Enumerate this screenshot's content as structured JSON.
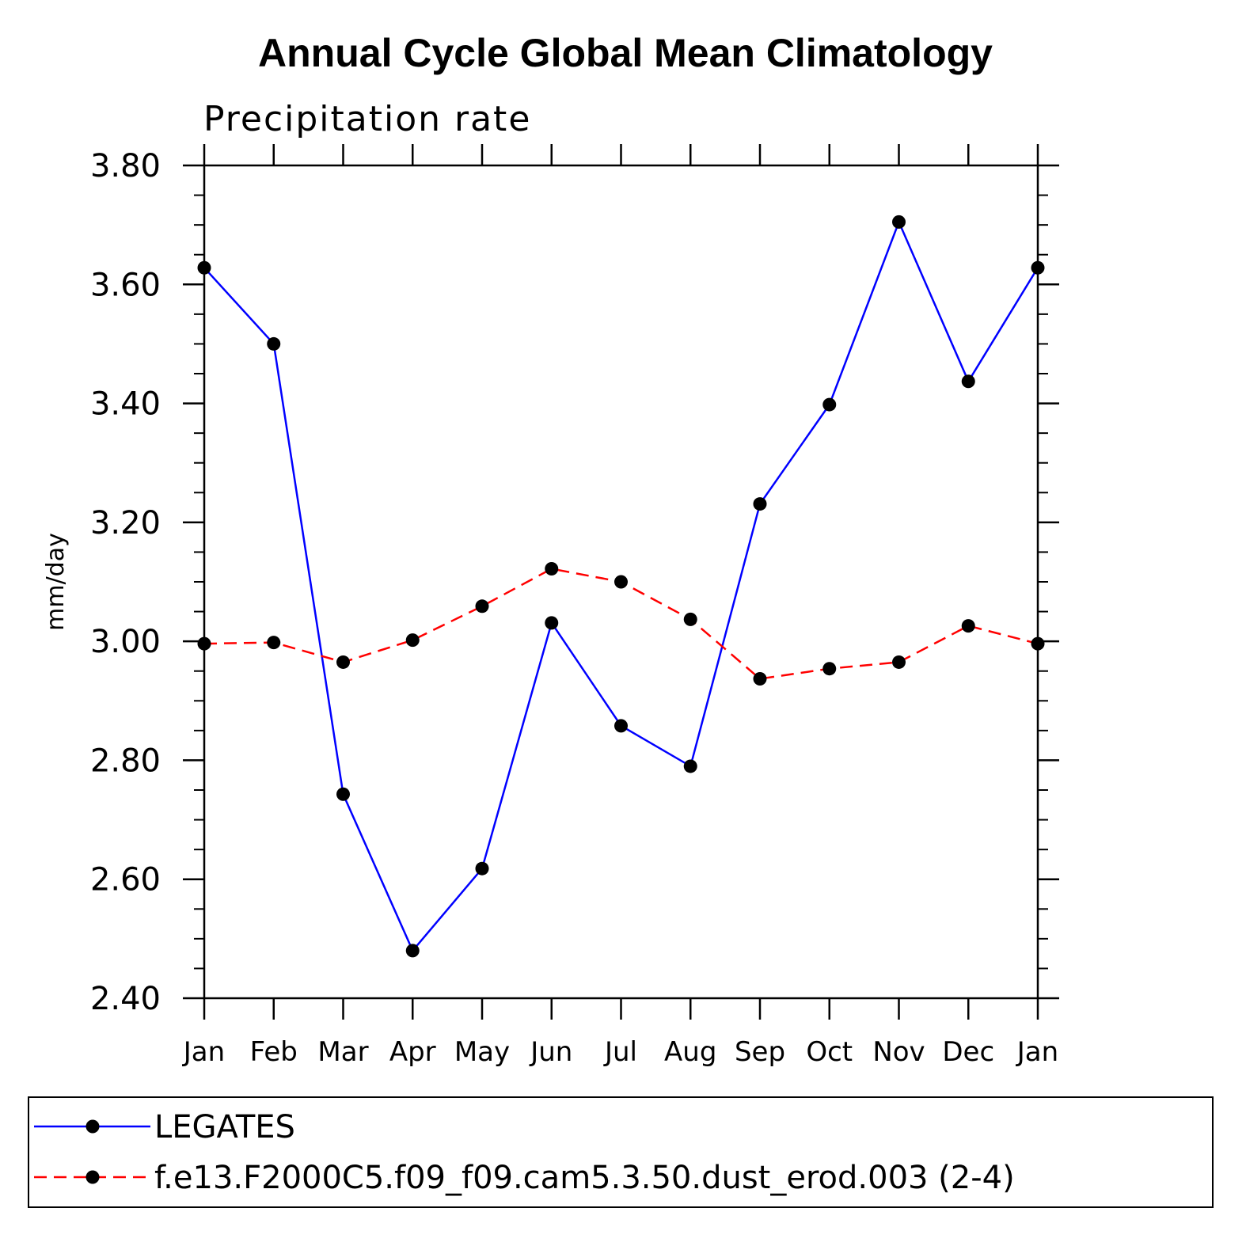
{
  "chart_data": {
    "type": "line",
    "title": "Annual Cycle Global Mean Climatology",
    "subtitle": "Precipitation rate",
    "xlabel": "",
    "ylabel": "mm/day",
    "categories": [
      "Jan",
      "Feb",
      "Mar",
      "Apr",
      "May",
      "Jun",
      "Jul",
      "Aug",
      "Sep",
      "Oct",
      "Nov",
      "Dec",
      "Jan"
    ],
    "ylim": [
      2.4,
      3.8
    ],
    "yticks": [
      "2.40",
      "2.60",
      "2.80",
      "3.00",
      "3.20",
      "3.40",
      "3.60",
      "3.80"
    ],
    "series": [
      {
        "name": "LEGATES",
        "color": "#0000ff",
        "dash": "solid",
        "values": [
          3.628,
          3.5,
          2.743,
          2.48,
          2.618,
          3.031,
          2.858,
          2.79,
          3.231,
          3.398,
          3.705,
          3.437,
          3.628
        ]
      },
      {
        "name": "f.e13.F2000C5.f09_f09.cam5.3.50.dust_erod.003 (2-4)",
        "color": "#ff0000",
        "dash": "dashed",
        "values": [
          2.996,
          2.998,
          2.965,
          3.002,
          3.059,
          3.122,
          3.1,
          3.037,
          2.937,
          2.954,
          2.965,
          3.026,
          2.996
        ]
      }
    ],
    "legend": {
      "placement": "bottom",
      "marker_color": "#000000"
    }
  }
}
